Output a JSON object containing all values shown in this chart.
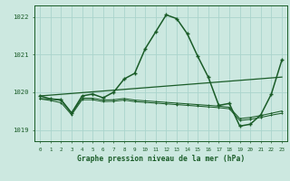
{
  "title": "Graphe pression niveau de la mer (hPa)",
  "background_color": "#cce8e0",
  "grid_color": "#aad4cc",
  "line_color": "#1a5c28",
  "xlim": [
    -0.5,
    23.5
  ],
  "ylim": [
    1018.7,
    1022.3
  ],
  "yticks": [
    1019,
    1020,
    1021,
    1022
  ],
  "series": [
    {
      "x": [
        0,
        1,
        2,
        3,
        4,
        5,
        6,
        7,
        8,
        9,
        10,
        11,
        12,
        13,
        14,
        15,
        16,
        17,
        18,
        19,
        20,
        21,
        22,
        23
      ],
      "y": [
        1019.9,
        1019.82,
        1019.8,
        1019.45,
        1019.9,
        1019.95,
        1019.85,
        1020.0,
        1020.35,
        1020.5,
        1021.15,
        1021.6,
        1022.05,
        1021.95,
        1021.55,
        1020.95,
        1020.4,
        1019.65,
        1019.7,
        1019.1,
        1019.15,
        1019.4,
        1019.95,
        1020.85
      ]
    },
    {
      "x": [
        0,
        23
      ],
      "y": [
        1019.9,
        1020.4
      ]
    },
    {
      "x": [
        0,
        1,
        2,
        3,
        4,
        5,
        6,
        7,
        8,
        9,
        10,
        11,
        12,
        13,
        14,
        15,
        16,
        17,
        18,
        19,
        20,
        21,
        22,
        23
      ],
      "y": [
        1019.83,
        1019.82,
        1019.78,
        1019.44,
        1019.84,
        1019.84,
        1019.79,
        1019.8,
        1019.83,
        1019.79,
        1019.77,
        1019.75,
        1019.73,
        1019.71,
        1019.69,
        1019.67,
        1019.65,
        1019.63,
        1019.6,
        1019.3,
        1019.33,
        1019.38,
        1019.44,
        1019.5
      ]
    },
    {
      "x": [
        0,
        1,
        2,
        3,
        4,
        5,
        6,
        7,
        8,
        9,
        10,
        11,
        12,
        13,
        14,
        15,
        16,
        17,
        18,
        19,
        20,
        21,
        22,
        23
      ],
      "y": [
        1019.82,
        1019.78,
        1019.72,
        1019.4,
        1019.8,
        1019.8,
        1019.75,
        1019.76,
        1019.79,
        1019.75,
        1019.73,
        1019.71,
        1019.69,
        1019.67,
        1019.65,
        1019.63,
        1019.61,
        1019.59,
        1019.56,
        1019.25,
        1019.28,
        1019.33,
        1019.39,
        1019.44
      ]
    }
  ]
}
